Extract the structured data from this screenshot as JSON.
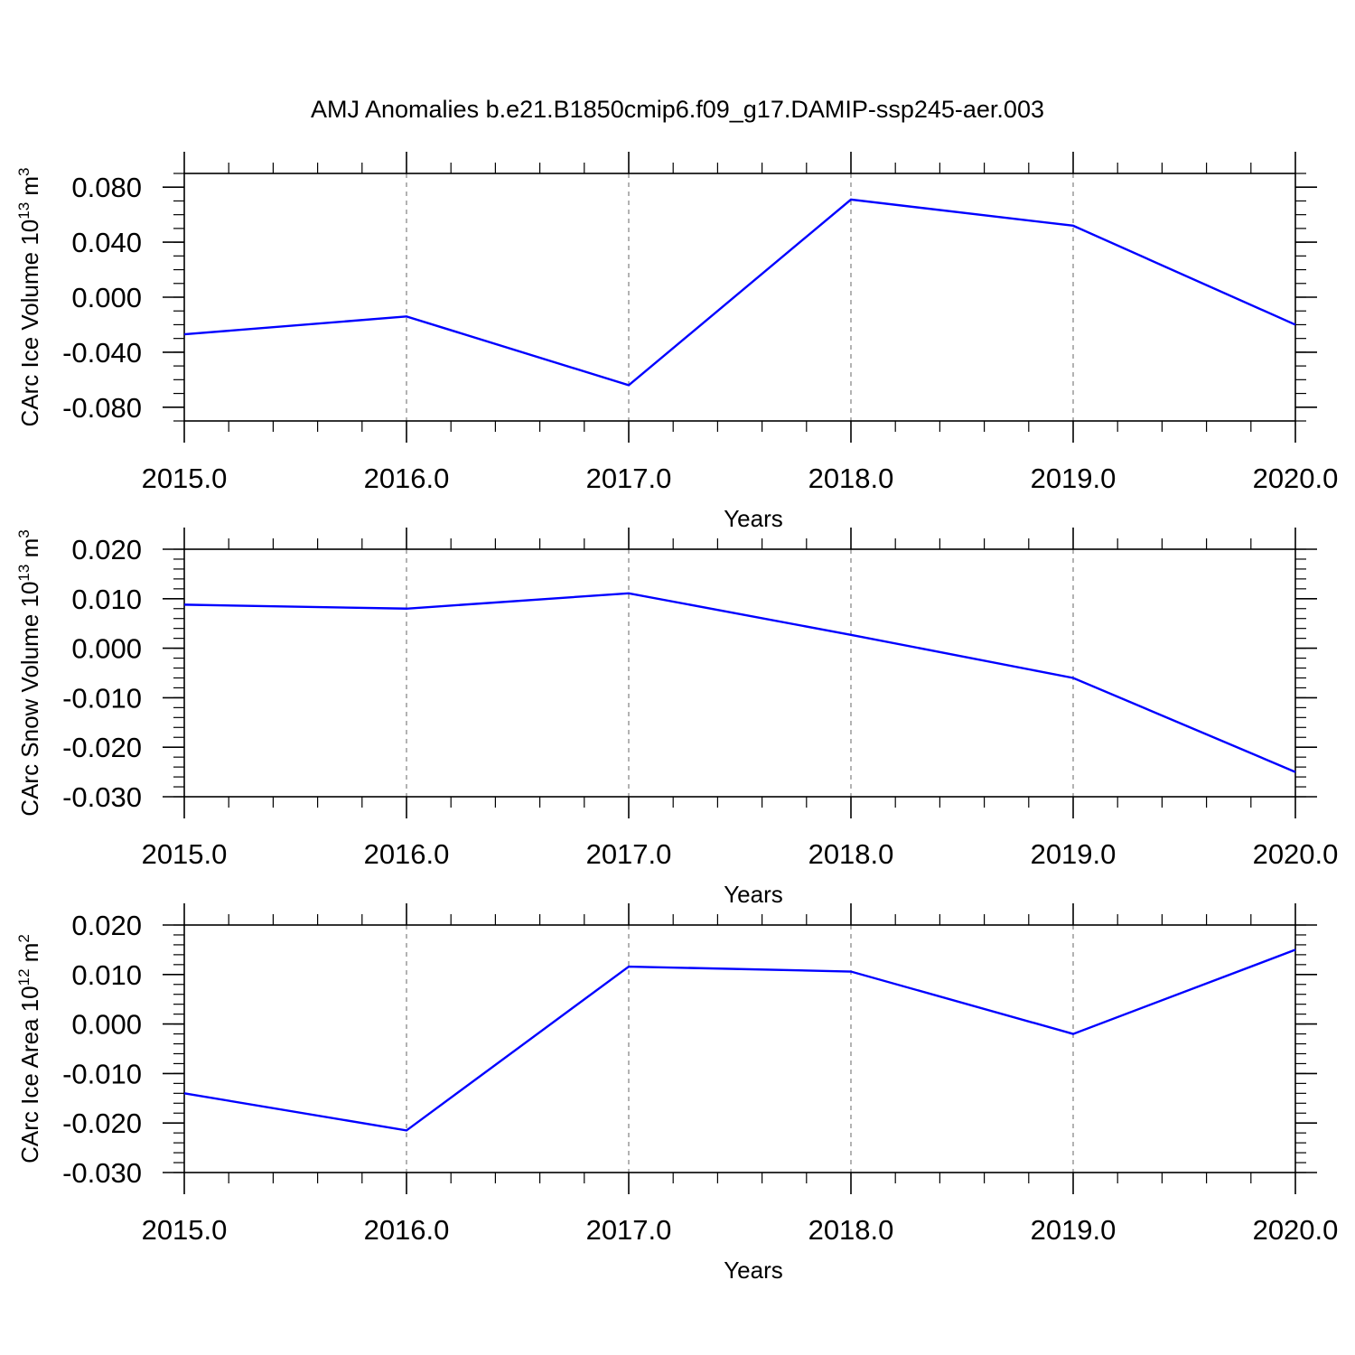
{
  "title": "AMJ Anomalies b.e21.B1850cmip6.f09_g17.DAMIP-ssp245-aer.003",
  "colors": {
    "series": "#0000ff",
    "axis": "#000000",
    "grid": "#808080",
    "background": "#ffffff"
  },
  "chart_data": [
    {
      "type": "line",
      "title": "AMJ Anomalies b.e21.B1850cmip6.f09_g17.DAMIP-ssp245-aer.003",
      "xlabel": "Years",
      "ylabel": "CArc Ice Volume 10",
      "ylabel_exp": "13",
      "ylabel_unit": " m",
      "ylabel_unit_exp": "3",
      "x": [
        2015,
        2016,
        2017,
        2018,
        2019,
        2020
      ],
      "xlim": [
        2015,
        2020
      ],
      "x_ticks": [
        2015,
        2016,
        2017,
        2018,
        2019,
        2020
      ],
      "x_tick_labels": [
        "2015.0",
        "2016.0",
        "2017.0",
        "2018.0",
        "2019.0",
        "2020.0"
      ],
      "ylim": [
        -0.09,
        0.09
      ],
      "y_ticks": [
        -0.08,
        -0.04,
        0.0,
        0.04,
        0.08
      ],
      "y_tick_labels": [
        "-0.080",
        "-0.040",
        "0.000",
        "0.040",
        "0.080"
      ],
      "y_minor_step": 0.01,
      "series": [
        {
          "values": [
            -0.027,
            -0.014,
            -0.064,
            0.071,
            0.052,
            -0.02
          ]
        }
      ],
      "grid": "vertical dashed at major x ticks"
    },
    {
      "type": "line",
      "xlabel": "Years",
      "ylabel": "CArc Snow Volume 10",
      "ylabel_exp": "13",
      "ylabel_unit": " m",
      "ylabel_unit_exp": "3",
      "x": [
        2015,
        2016,
        2017,
        2018,
        2019,
        2020
      ],
      "xlim": [
        2015,
        2020
      ],
      "x_ticks": [
        2015,
        2016,
        2017,
        2018,
        2019,
        2020
      ],
      "x_tick_labels": [
        "2015.0",
        "2016.0",
        "2017.0",
        "2018.0",
        "2019.0",
        "2020.0"
      ],
      "ylim": [
        -0.03,
        0.02
      ],
      "y_ticks": [
        -0.03,
        -0.02,
        -0.01,
        0.0,
        0.01,
        0.02
      ],
      "y_tick_labels": [
        "-0.030",
        "-0.020",
        "-0.010",
        "0.000",
        "0.010",
        "0.020"
      ],
      "y_minor_step": 0.002,
      "series": [
        {
          "values": [
            0.0088,
            0.008,
            0.0111,
            0.0027,
            -0.006,
            -0.025
          ]
        }
      ],
      "grid": "vertical dashed at major x ticks"
    },
    {
      "type": "line",
      "xlabel": "Years",
      "ylabel": "CArc Ice Area 10",
      "ylabel_exp": "12",
      "ylabel_unit": " m",
      "ylabel_unit_exp": "2",
      "x": [
        2015,
        2016,
        2017,
        2018,
        2019,
        2020
      ],
      "xlim": [
        2015,
        2020
      ],
      "x_ticks": [
        2015,
        2016,
        2017,
        2018,
        2019,
        2020
      ],
      "x_tick_labels": [
        "2015.0",
        "2016.0",
        "2017.0",
        "2018.0",
        "2019.0",
        "2020.0"
      ],
      "ylim": [
        -0.03,
        0.02
      ],
      "y_ticks": [
        -0.03,
        -0.02,
        -0.01,
        0.0,
        0.01,
        0.02
      ],
      "y_tick_labels": [
        "-0.030",
        "-0.020",
        "-0.010",
        "0.000",
        "0.010",
        "0.020"
      ],
      "y_minor_step": 0.002,
      "series": [
        {
          "values": [
            -0.014,
            -0.0215,
            0.0116,
            0.0106,
            -0.002,
            0.015
          ]
        }
      ],
      "grid": "vertical dashed at major x ticks"
    }
  ]
}
